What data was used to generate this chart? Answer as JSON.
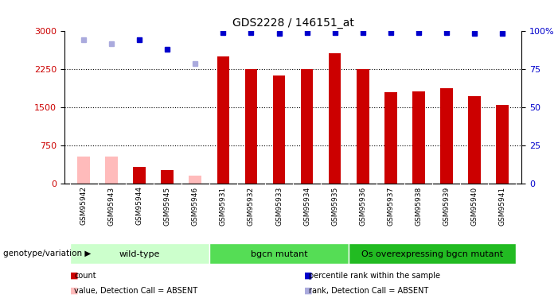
{
  "title": "GDS2228 / 146151_at",
  "samples": [
    "GSM95942",
    "GSM95943",
    "GSM95944",
    "GSM95945",
    "GSM95946",
    "GSM95931",
    "GSM95932",
    "GSM95933",
    "GSM95934",
    "GSM95935",
    "GSM95936",
    "GSM95937",
    "GSM95938",
    "GSM95939",
    "GSM95940",
    "GSM95941"
  ],
  "counts": [
    530,
    530,
    330,
    260,
    150,
    2500,
    2250,
    2130,
    2250,
    2560,
    2250,
    1800,
    1820,
    1870,
    1720,
    1540
  ],
  "is_absent": [
    true,
    true,
    false,
    false,
    true,
    false,
    false,
    false,
    false,
    false,
    false,
    false,
    false,
    false,
    false,
    false
  ],
  "percentile_ranks": [
    2830,
    2760,
    2830,
    2650,
    2370,
    2980,
    2980,
    2960,
    2980,
    2980,
    2980,
    2980,
    2980,
    2980,
    2960,
    2960
  ],
  "rank_is_absent": [
    true,
    true,
    false,
    false,
    true,
    false,
    false,
    false,
    false,
    false,
    false,
    false,
    false,
    false,
    false,
    false
  ],
  "groups": [
    {
      "label": "wild-type",
      "start": 0,
      "end": 5,
      "color": "#ccffcc"
    },
    {
      "label": "bgcn mutant",
      "start": 5,
      "end": 10,
      "color": "#55dd55"
    },
    {
      "label": "Os overexpressing bgcn mutant",
      "start": 10,
      "end": 16,
      "color": "#22bb22"
    }
  ],
  "ylim_left": [
    0,
    3000
  ],
  "ylim_right": [
    0,
    100
  ],
  "yticks_left": [
    0,
    750,
    1500,
    2250,
    3000
  ],
  "ytick_labels_left": [
    "0",
    "750",
    "1500",
    "2250",
    "3000"
  ],
  "yticks_right": [
    0,
    25,
    50,
    75,
    100
  ],
  "ytick_labels_right": [
    "0",
    "25",
    "50",
    "75",
    "100%"
  ],
  "color_count": "#cc0000",
  "color_count_absent": "#ffbbbb",
  "color_rank": "#0000cc",
  "color_rank_absent": "#aaaadd",
  "legend": [
    {
      "label": "count",
      "color": "#cc0000"
    },
    {
      "label": "percentile rank within the sample",
      "color": "#0000cc"
    },
    {
      "label": "value, Detection Call = ABSENT",
      "color": "#ffbbbb"
    },
    {
      "label": "rank, Detection Call = ABSENT",
      "color": "#aaaadd"
    }
  ]
}
